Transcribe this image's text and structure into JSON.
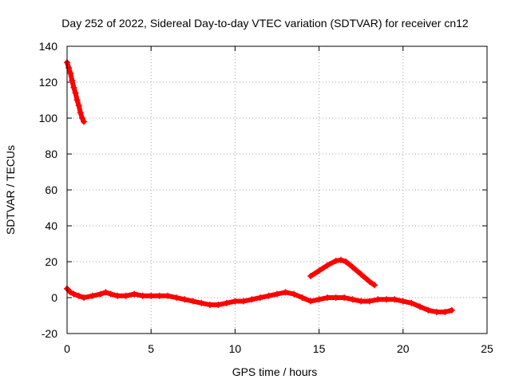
{
  "chart_data": {
    "type": "scatter",
    "title": "Day 252 of 2022, Sidereal Day-to-day VTEC variation (SDTVAR) for receiver cn12",
    "xlabel": "GPS time / hours",
    "ylabel": "SDTVAR / TECUs",
    "xlim": [
      0,
      25
    ],
    "ylim": [
      -20,
      140
    ],
    "xticks": [
      0,
      5,
      10,
      15,
      20,
      25
    ],
    "yticks": [
      -20,
      0,
      20,
      40,
      60,
      80,
      100,
      120,
      140
    ],
    "grid": true,
    "color": "#ff0000",
    "marker": "+",
    "series": [
      {
        "name": "segment-1",
        "x": [
          0.0,
          0.1,
          0.2,
          0.3,
          0.4,
          0.5,
          0.6,
          0.7,
          0.8,
          0.9,
          1.0
        ],
        "y": [
          131,
          128,
          125,
          121,
          117,
          114,
          110,
          107,
          103,
          100,
          98
        ]
      },
      {
        "name": "segment-2",
        "x": [
          14.5,
          15.0,
          15.5,
          16.0,
          16.3,
          16.6,
          17.0,
          17.5,
          18.0,
          18.3
        ],
        "y": [
          12,
          15,
          18,
          20.5,
          21,
          20,
          17,
          13,
          9,
          7
        ]
      },
      {
        "name": "segment-3",
        "x": [
          0.0,
          0.2,
          0.4,
          0.7,
          1.0,
          1.5,
          2.0,
          2.3,
          2.6,
          3.0,
          3.5,
          4.0,
          4.5,
          5.0,
          5.5,
          6.0,
          6.5,
          7.0,
          7.5,
          8.0,
          8.5,
          9.0,
          9.5,
          10.0,
          10.5,
          11.0,
          11.5,
          12.0,
          12.5,
          13.0,
          13.5,
          14.0,
          14.5,
          15.0,
          15.5,
          16.0,
          16.5,
          17.0,
          17.5,
          18.0,
          18.5,
          19.0,
          19.5,
          20.0,
          20.5,
          21.0,
          21.5,
          22.0,
          22.5,
          22.9
        ],
        "y": [
          5,
          3,
          2,
          1,
          0,
          1,
          2,
          3,
          2,
          1,
          1,
          2,
          1,
          1,
          1,
          1,
          0,
          -1,
          -2,
          -3,
          -4,
          -4,
          -3,
          -2,
          -2,
          -1,
          0,
          1,
          2,
          3,
          2,
          0,
          -2,
          -1,
          0,
          0,
          0,
          -1,
          -2,
          -2,
          -1,
          -1,
          -1,
          -2,
          -3,
          -5,
          -7,
          -8,
          -8,
          -7
        ]
      }
    ]
  }
}
